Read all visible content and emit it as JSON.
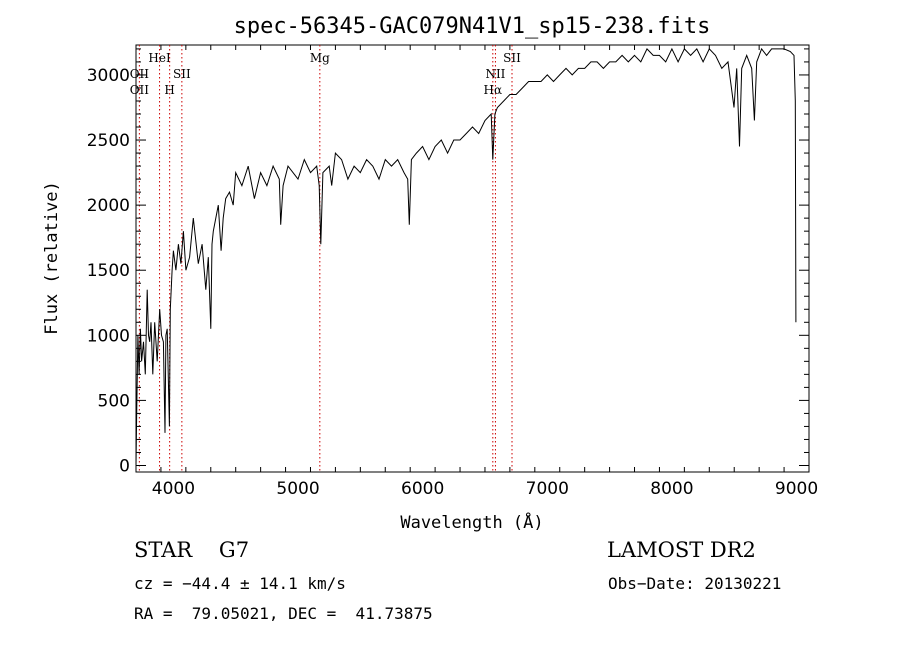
{
  "chart_data": {
    "type": "line",
    "title": "spec-56345-GAC079N41V1_sp15-238.fits",
    "xlabel": "Wavelength (Å)",
    "ylabel": "Flux (relative)",
    "xlim": [
      3700,
      9100
    ],
    "ylim": [
      -50,
      3230
    ],
    "xticks": [
      4000,
      5000,
      6000,
      7000,
      8000,
      9000
    ],
    "yticks": [
      0,
      500,
      1000,
      1500,
      2000,
      2500,
      3000
    ],
    "grid": false,
    "line_color": "#000000",
    "marker_color": "#cc0000",
    "series": [
      {
        "values_x": [
          3700,
          3705,
          3715,
          3725,
          3735,
          3745,
          3760,
          3775,
          3790,
          3800,
          3810,
          3820,
          3835,
          3850,
          3870,
          3890,
          3905,
          3920,
          3933,
          3940,
          3950,
          3968,
          3975,
          3990,
          4000,
          4020,
          4040,
          4060,
          4080,
          4100,
          4130,
          4160,
          4200,
          4230,
          4260,
          4280,
          4300,
          4310,
          4320,
          4340,
          4360,
          4383,
          4400,
          4420,
          4450,
          4480,
          4500,
          4550,
          4600,
          4650,
          4700,
          4750,
          4800,
          4850,
          4861,
          4880,
          4920,
          4960,
          5000,
          5050,
          5100,
          5150,
          5170,
          5183,
          5200,
          5250,
          5270,
          5300,
          5350,
          5400,
          5450,
          5500,
          5550,
          5600,
          5650,
          5700,
          5750,
          5800,
          5850,
          5880,
          5893,
          5910,
          5950,
          6000,
          6050,
          6100,
          6150,
          6200,
          6250,
          6300,
          6350,
          6400,
          6450,
          6500,
          6550,
          6563,
          6580,
          6600,
          6650,
          6700,
          6750,
          6800,
          6850,
          6900,
          6950,
          7000,
          7050,
          7100,
          7150,
          7200,
          7250,
          7300,
          7350,
          7400,
          7450,
          7500,
          7550,
          7600,
          7650,
          7700,
          7750,
          7800,
          7850,
          7900,
          7950,
          8000,
          8050,
          8100,
          8150,
          8200,
          8250,
          8300,
          8350,
          8400,
          8450,
          8498,
          8520,
          8542,
          8560,
          8600,
          8640,
          8662,
          8680,
          8720,
          8760,
          8800,
          8850,
          8900,
          8950,
          8980,
          8990,
          8995
        ],
        "values_y": [
          0,
          350,
          1000,
          700,
          1050,
          800,
          950,
          700,
          1350,
          1000,
          950,
          1100,
          700,
          1100,
          800,
          1200,
          1000,
          950,
          250,
          1000,
          1050,
          300,
          1200,
          1500,
          1650,
          1500,
          1700,
          1550,
          1800,
          1500,
          1600,
          1900,
          1550,
          1700,
          1350,
          1600,
          1050,
          1700,
          1800,
          1900,
          2000,
          1650,
          1900,
          2050,
          2100,
          2000,
          2250,
          2150,
          2300,
          2050,
          2250,
          2150,
          2300,
          2200,
          1850,
          2150,
          2300,
          2250,
          2200,
          2350,
          2250,
          2300,
          2150,
          1700,
          2250,
          2300,
          2150,
          2400,
          2350,
          2200,
          2300,
          2250,
          2350,
          2300,
          2200,
          2350,
          2300,
          2350,
          2250,
          2200,
          1850,
          2350,
          2400,
          2450,
          2350,
          2450,
          2500,
          2400,
          2500,
          2500,
          2550,
          2600,
          2550,
          2650,
          2700,
          2350,
          2700,
          2750,
          2800,
          2850,
          2850,
          2900,
          2950,
          2950,
          2950,
          3000,
          2950,
          3000,
          3050,
          3000,
          3050,
          3050,
          3100,
          3100,
          3050,
          3100,
          3100,
          3150,
          3100,
          3150,
          3100,
          3200,
          3150,
          3150,
          3100,
          3200,
          3100,
          3200,
          3150,
          3200,
          3100,
          3200,
          3150,
          3050,
          3100,
          2750,
          3050,
          2450,
          3050,
          3150,
          3050,
          2650,
          3100,
          3200,
          3150,
          3200,
          3200,
          3200,
          3180,
          3150,
          2800,
          1100
        ]
      }
    ],
    "line_markers": [
      {
        "label": "OII",
        "x": 3727,
        "row": 2
      },
      {
        "label": "OII",
        "x": 3727,
        "row": 3
      },
      {
        "label": "HeI",
        "x": 3889,
        "row": 1
      },
      {
        "label": "H",
        "x": 3970,
        "row": 3
      },
      {
        "label": "SII",
        "x": 4068,
        "row": 2
      },
      {
        "label": "Mg",
        "x": 5175,
        "row": 1
      },
      {
        "label": "NII",
        "x": 6584,
        "row": 2
      },
      {
        "label": "Hα",
        "x": 6563,
        "row": 3
      },
      {
        "label": "SII",
        "x": 6717,
        "row": 1
      }
    ]
  },
  "info": {
    "class": "STAR    G7",
    "survey": "LAMOST DR2",
    "cz": "cz = −44.4 ± 14.1 km/s",
    "obs_date": "Obs−Date: 20130221",
    "coords": "RA =  79.05021, DEC =  41.73875"
  }
}
